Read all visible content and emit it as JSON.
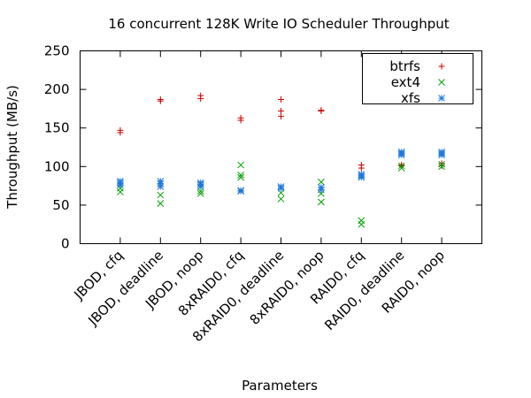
{
  "chart_data": {
    "type": "scatter",
    "title": "16 concurrent 128K Write IO Scheduler Throughput",
    "xlabel": "Parameters",
    "ylabel": "Throughput (MB/s)",
    "ylim": [
      0,
      250
    ],
    "yticks": [
      0,
      50,
      100,
      150,
      200,
      250
    ],
    "categories": [
      "JBOD, cfq",
      "JBOD, deadline",
      "JBOD, noop",
      "8xRAID0, cfq",
      "8xRAID0, deadline",
      "8xRAID0, noop",
      "RAID0, cfq",
      "RAID0, deadline",
      "RAID0, noop"
    ],
    "legend_position": "top-right",
    "grid": false,
    "series": [
      {
        "name": "btrfs",
        "color": "#cc0000",
        "marker": "plus",
        "points": [
          {
            "x": 0,
            "y": 144
          },
          {
            "x": 0,
            "y": 147
          },
          {
            "x": 1,
            "y": 185
          },
          {
            "x": 1,
            "y": 187
          },
          {
            "x": 2,
            "y": 188
          },
          {
            "x": 2,
            "y": 192
          },
          {
            "x": 3,
            "y": 160
          },
          {
            "x": 3,
            "y": 163
          },
          {
            "x": 4,
            "y": 165
          },
          {
            "x": 4,
            "y": 172
          },
          {
            "x": 4,
            "y": 187
          },
          {
            "x": 5,
            "y": 172
          },
          {
            "x": 5,
            "y": 173
          },
          {
            "x": 6,
            "y": 98
          },
          {
            "x": 6,
            "y": 102
          },
          {
            "x": 7,
            "y": 101
          },
          {
            "x": 7,
            "y": 102
          },
          {
            "x": 8,
            "y": 101
          },
          {
            "x": 8,
            "y": 104
          }
        ]
      },
      {
        "name": "ext4",
        "color": "#00a000",
        "marker": "cross",
        "points": [
          {
            "x": 0,
            "y": 67
          },
          {
            "x": 0,
            "y": 72
          },
          {
            "x": 1,
            "y": 52
          },
          {
            "x": 1,
            "y": 63
          },
          {
            "x": 2,
            "y": 65
          },
          {
            "x": 2,
            "y": 68
          },
          {
            "x": 3,
            "y": 86
          },
          {
            "x": 3,
            "y": 89
          },
          {
            "x": 3,
            "y": 102
          },
          {
            "x": 4,
            "y": 58
          },
          {
            "x": 4,
            "y": 66
          },
          {
            "x": 5,
            "y": 54
          },
          {
            "x": 5,
            "y": 65
          },
          {
            "x": 5,
            "y": 80
          },
          {
            "x": 6,
            "y": 25
          },
          {
            "x": 6,
            "y": 30
          },
          {
            "x": 7,
            "y": 98
          },
          {
            "x": 7,
            "y": 101
          },
          {
            "x": 8,
            "y": 100
          },
          {
            "x": 8,
            "y": 103
          }
        ]
      },
      {
        "name": "xfs",
        "color": "#1e78dc",
        "marker": "star",
        "points": [
          {
            "x": 0,
            "y": 76
          },
          {
            "x": 0,
            "y": 79
          },
          {
            "x": 0,
            "y": 81
          },
          {
            "x": 1,
            "y": 74
          },
          {
            "x": 1,
            "y": 78
          },
          {
            "x": 1,
            "y": 81
          },
          {
            "x": 2,
            "y": 74
          },
          {
            "x": 2,
            "y": 77
          },
          {
            "x": 2,
            "y": 79
          },
          {
            "x": 3,
            "y": 68
          },
          {
            "x": 3,
            "y": 69
          },
          {
            "x": 4,
            "y": 72
          },
          {
            "x": 4,
            "y": 74
          },
          {
            "x": 5,
            "y": 70
          },
          {
            "x": 5,
            "y": 73
          },
          {
            "x": 6,
            "y": 86
          },
          {
            "x": 6,
            "y": 88
          },
          {
            "x": 6,
            "y": 90
          },
          {
            "x": 7,
            "y": 115
          },
          {
            "x": 7,
            "y": 117
          },
          {
            "x": 7,
            "y": 119
          },
          {
            "x": 8,
            "y": 115
          },
          {
            "x": 8,
            "y": 117
          },
          {
            "x": 8,
            "y": 119
          }
        ]
      }
    ]
  }
}
